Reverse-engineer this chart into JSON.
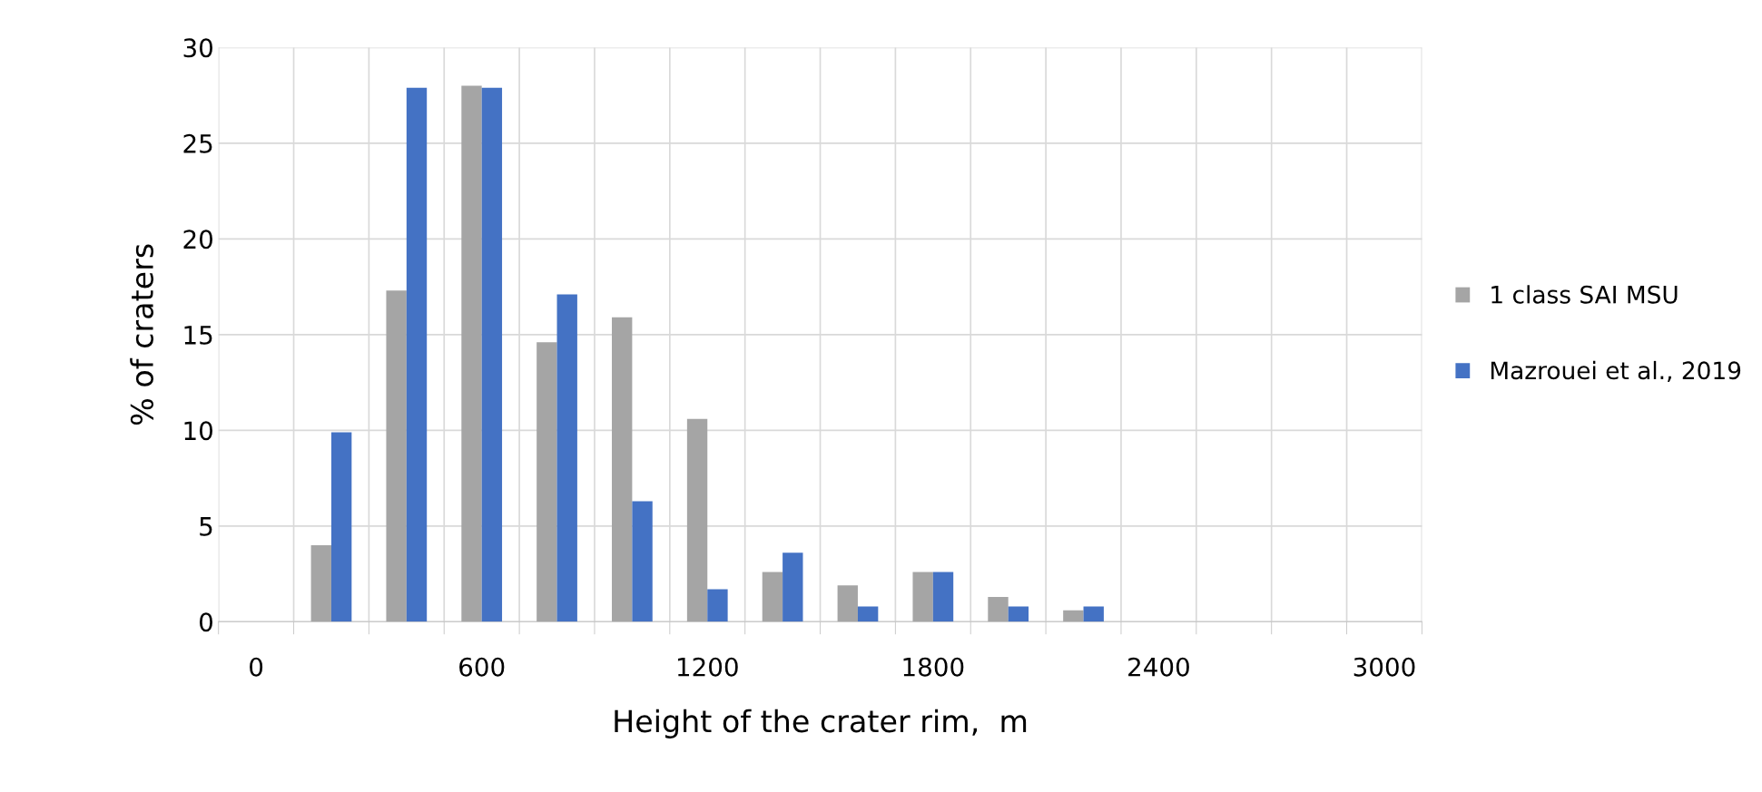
{
  "chart_data": {
    "type": "bar",
    "xlabel": "Height of the crater rim,  m",
    "ylabel": "% of craters",
    "categories": [
      "0",
      null,
      null,
      "600",
      null,
      null,
      "1200",
      null,
      null,
      "1800",
      null,
      null,
      "2400",
      null,
      null,
      "3000"
    ],
    "series": [
      {
        "name": "1 class SAI MSU",
        "color": "#a5a5a5",
        "values": [
          0,
          4,
          17.3,
          28,
          14.6,
          15.9,
          10.6,
          2.6,
          1.9,
          2.6,
          1.3,
          0.6,
          0,
          0,
          0,
          0
        ]
      },
      {
        "name": "Mazrouei et al., 2019",
        "color": "#4472c4",
        "values": [
          0,
          9.9,
          27.9,
          27.9,
          17.1,
          6.3,
          1.7,
          3.6,
          0.8,
          2.6,
          0.8,
          0.8,
          0,
          0,
          0,
          0
        ]
      }
    ],
    "ylim": [
      0,
      30
    ],
    "yticks": [
      0,
      5,
      10,
      15,
      20,
      25,
      30
    ],
    "grid": true,
    "legend": "right"
  }
}
